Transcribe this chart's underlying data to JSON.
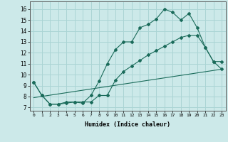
{
  "title": "",
  "xlabel": "Humidex (Indice chaleur)",
  "ylabel": "",
  "background_color": "#cce9e9",
  "grid_color": "#aad4d4",
  "line_color": "#1a6b5a",
  "xlim": [
    -0.5,
    23.5
  ],
  "ylim": [
    6.7,
    16.7
  ],
  "xticks": [
    0,
    1,
    2,
    3,
    4,
    5,
    6,
    7,
    8,
    9,
    10,
    11,
    12,
    13,
    14,
    15,
    16,
    17,
    18,
    19,
    20,
    21,
    22,
    23
  ],
  "yticks": [
    7,
    8,
    9,
    10,
    11,
    12,
    13,
    14,
    15,
    16
  ],
  "line1_x": [
    0,
    1,
    2,
    3,
    4,
    5,
    6,
    7,
    8,
    9,
    10,
    11,
    12,
    13,
    14,
    15,
    16,
    17,
    18,
    19,
    20,
    21,
    22,
    23
  ],
  "line1_y": [
    9.3,
    8.1,
    7.3,
    7.3,
    7.4,
    7.5,
    7.4,
    8.1,
    9.4,
    11.0,
    12.3,
    13.0,
    13.0,
    14.3,
    14.6,
    15.1,
    16.0,
    15.7,
    15.0,
    15.6,
    14.3,
    12.5,
    11.2,
    11.2
  ],
  "line2_x": [
    0,
    1,
    2,
    3,
    4,
    5,
    6,
    7,
    8,
    9,
    10,
    11,
    12,
    13,
    14,
    15,
    16,
    17,
    18,
    19,
    20,
    21,
    22,
    23
  ],
  "line2_y": [
    9.3,
    8.1,
    7.3,
    7.3,
    7.5,
    7.5,
    7.5,
    7.5,
    8.1,
    8.1,
    9.5,
    10.3,
    10.8,
    11.3,
    11.8,
    12.2,
    12.6,
    13.0,
    13.4,
    13.6,
    13.6,
    12.5,
    11.2,
    10.5
  ],
  "line3_x": [
    0,
    23
  ],
  "line3_y": [
    7.9,
    10.5
  ]
}
